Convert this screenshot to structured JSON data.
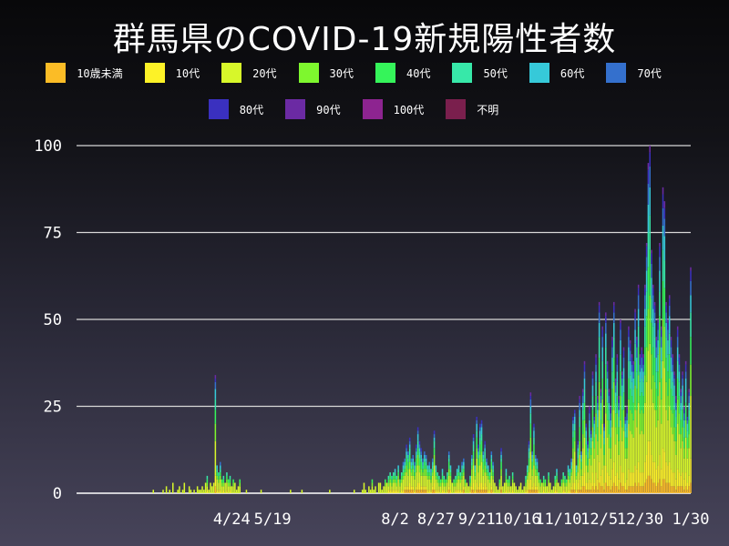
{
  "chart_data": {
    "type": "bar",
    "stacked": true,
    "title": "群馬県のCOVID-19新規陽性者数",
    "xlabel": "",
    "ylabel": "",
    "ylim": [
      0,
      100
    ],
    "xlim": [
      "2020-01-20",
      "2021-01-30"
    ],
    "grid": true,
    "legend_placement": "top",
    "y_ticks": [
      "0",
      "25",
      "50",
      "75",
      "100"
    ],
    "y_tick_values": [
      0,
      25,
      50,
      75,
      100
    ],
    "x_ticks": [
      {
        "date": "2020-04-24",
        "label": "4/24"
      },
      {
        "date": "2020-05-19",
        "label": "5/19"
      },
      {
        "date": "2020-08-02",
        "label": "8/2"
      },
      {
        "date": "2020-08-27",
        "label": "8/27"
      },
      {
        "date": "2020-09-21",
        "label": "9/21"
      },
      {
        "date": "2020-10-16",
        "label": "10/16"
      },
      {
        "date": "2020-11-10",
        "label": "11/10"
      },
      {
        "date": "2020-12-05",
        "label": "12/5"
      },
      {
        "date": "2020-12-30",
        "label": "12/30"
      },
      {
        "date": "2021-01-30",
        "label": "1/30"
      }
    ],
    "series": [
      {
        "name": "10歳未満",
        "color": "#fbbc26",
        "approx_share": 0.05
      },
      {
        "name": "10代",
        "color": "#fdf227",
        "approx_share": 0.1
      },
      {
        "name": "20代",
        "color": "#d7f72a",
        "approx_share": 0.28
      },
      {
        "name": "30代",
        "color": "#7ef72e",
        "approx_share": 0.14
      },
      {
        "name": "40代",
        "color": "#35f45a",
        "approx_share": 0.13
      },
      {
        "name": "50代",
        "color": "#37e8a9",
        "approx_share": 0.1
      },
      {
        "name": "60代",
        "color": "#36c9d9",
        "approx_share": 0.08
      },
      {
        "name": "70代",
        "color": "#3470cd",
        "approx_share": 0.06
      },
      {
        "name": "80代",
        "color": "#3a30bf",
        "approx_share": 0.04
      },
      {
        "name": "90代",
        "color": "#6b2aa3",
        "approx_share": 0.02
      },
      {
        "name": "100代",
        "color": "#8d2490",
        "approx_share": 0.0
      },
      {
        "name": "不明",
        "color": "#7a1f4d",
        "approx_share": 0.0
      }
    ],
    "daily_totals": [
      {
        "month": "2020-03",
        "values": [
          0,
          0,
          0,
          0,
          0,
          0,
          1,
          0,
          0,
          0,
          0,
          0,
          1,
          0,
          2,
          0,
          1,
          0,
          3,
          0,
          0,
          1,
          2,
          0,
          1,
          3,
          0,
          0,
          2,
          1,
          0
        ]
      },
      {
        "month": "2020-04",
        "values": [
          1,
          0,
          2,
          1,
          1,
          2,
          1,
          3,
          5,
          1,
          3,
          2,
          3,
          34,
          8,
          6,
          9,
          4,
          5,
          3,
          6,
          4,
          5,
          2,
          4,
          3,
          1,
          2,
          4,
          0
        ]
      },
      {
        "month": "2020-05",
        "values": [
          0,
          0,
          1,
          0,
          0,
          0,
          0,
          0,
          0,
          0,
          0,
          1,
          0,
          0,
          0,
          0,
          0,
          0,
          0,
          0,
          0,
          0,
          0,
          0,
          0,
          0,
          0,
          0,
          0,
          1,
          0
        ]
      },
      {
        "month": "2020-06",
        "values": [
          0,
          0,
          0,
          0,
          0,
          1,
          0,
          0,
          0,
          0,
          0,
          0,
          0,
          0,
          0,
          0,
          0,
          0,
          0,
          0,
          0,
          0,
          1,
          0,
          0,
          0,
          0,
          0,
          0,
          0
        ]
      },
      {
        "month": "2020-07",
        "values": [
          0,
          0,
          0,
          0,
          0,
          0,
          0,
          1,
          0,
          0,
          0,
          0,
          1,
          3,
          1,
          0,
          2,
          1,
          4,
          1,
          2,
          0,
          3,
          3,
          1,
          2,
          4,
          3,
          5,
          6,
          5
        ]
      },
      {
        "month": "2020-08",
        "values": [
          6,
          7,
          5,
          8,
          4,
          6,
          9,
          10,
          14,
          12,
          16,
          10,
          11,
          9,
          14,
          19,
          15,
          13,
          10,
          12,
          11,
          8,
          9,
          7,
          10,
          18,
          8,
          6,
          5,
          4,
          7
        ]
      },
      {
        "month": "2020-09",
        "values": [
          5,
          4,
          6,
          12,
          8,
          3,
          4,
          5,
          7,
          8,
          6,
          9,
          10,
          4,
          3,
          2,
          5,
          11,
          17,
          8,
          22,
          14,
          20,
          21,
          12,
          15,
          10,
          8,
          6,
          12
        ]
      },
      {
        "month": "2020-10",
        "values": [
          9,
          3,
          2,
          1,
          4,
          13,
          2,
          3,
          7,
          4,
          5,
          2,
          6,
          3,
          2,
          1,
          2,
          3,
          1,
          2,
          5,
          8,
          15,
          29,
          12,
          20,
          11,
          10,
          6,
          4,
          3
        ]
      },
      {
        "month": "2020-11",
        "values": [
          5,
          4,
          2,
          6,
          3,
          1,
          2,
          5,
          7,
          3,
          2,
          4,
          6,
          5,
          4,
          8,
          7,
          10,
          22,
          24,
          8,
          15,
          28,
          12,
          30,
          38,
          20,
          15,
          25,
          18
        ]
      },
      {
        "month": "2020-12",
        "values": [
          35,
          22,
          40,
          28,
          55,
          30,
          48,
          20,
          52,
          38,
          30,
          25,
          45,
          55,
          33,
          40,
          28,
          50,
          35,
          42,
          22,
          25,
          48,
          44,
          40,
          38,
          53,
          45,
          60,
          40,
          42
        ]
      },
      {
        "month": "2021-01",
        "values": [
          40,
          60,
          72,
          95,
          100,
          70,
          60,
          55,
          45,
          50,
          72,
          48,
          88,
          84,
          55,
          50,
          57,
          45,
          40,
          35,
          28,
          48,
          40,
          30,
          35,
          25,
          38,
          22,
          30,
          65
        ]
      }
    ]
  }
}
